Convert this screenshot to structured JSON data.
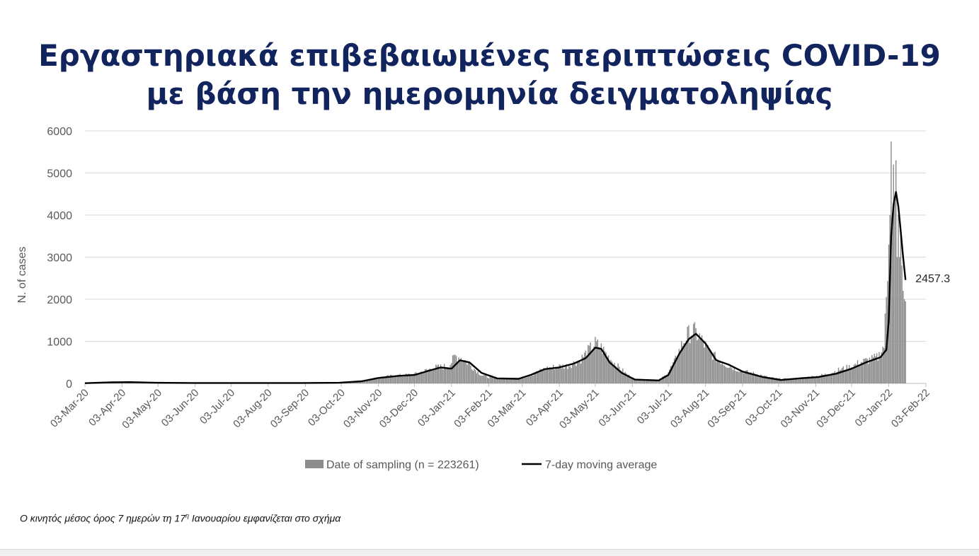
{
  "title": {
    "line1": "Εργαστηριακά επιβεβαιωμένες περιπτώσεις COVID-19",
    "line2": "με βάση την ημερομηνία δειγματοληψίας"
  },
  "footnote": {
    "before": "Ο κινητός μέσος όρος 7 ημερών τη 17",
    "sup": "η",
    "after": " Ιανουαρίου εμφανίζεται στο σχήμα"
  },
  "chart_data": {
    "type": "bar",
    "ylabel": "N. of cases",
    "ylim": [
      0,
      6000
    ],
    "yticks": [
      0,
      1000,
      2000,
      3000,
      4000,
      5000,
      6000
    ],
    "xticks": [
      "03-Mar-20",
      "03-Apr-20",
      "03-May-20",
      "03-Jun-20",
      "03-Jul-20",
      "03-Aug-20",
      "03-Sep-20",
      "03-Oct-20",
      "03-Nov-20",
      "03-Dec-20",
      "03-Jan-21",
      "03-Feb-21",
      "03-Mar-21",
      "03-Apr-21",
      "03-May-21",
      "03-Jun-21",
      "03-Jul-21",
      "03-Aug-21",
      "03-Sep-21",
      "03-Oct-21",
      "03-Nov-21",
      "03-Dec-21",
      "03-Jan-22",
      "03-Feb-22"
    ],
    "x_range": [
      "2020-03-03",
      "2022-02-03"
    ],
    "grid": true,
    "legend_position": "bottom",
    "colors": {
      "bars": "#8c8c8c",
      "line": "#000000",
      "grid": "#d9d9d9",
      "axis_text": "#595959"
    },
    "series": [
      {
        "name": "Date of sampling (n = 223261)",
        "kind": "bar",
        "points": [
          [
            "2020-03-03",
            10
          ],
          [
            "2020-03-20",
            30
          ],
          [
            "2020-04-03",
            40
          ],
          [
            "2020-04-20",
            25
          ],
          [
            "2020-05-10",
            15
          ],
          [
            "2020-06-01",
            10
          ],
          [
            "2020-06-20",
            20
          ],
          [
            "2020-07-10",
            15
          ],
          [
            "2020-08-01",
            20
          ],
          [
            "2020-08-25",
            15
          ],
          [
            "2020-09-20",
            20
          ],
          [
            "2020-10-10",
            30
          ],
          [
            "2020-10-25",
            80
          ],
          [
            "2020-11-03",
            140
          ],
          [
            "2020-11-15",
            180
          ],
          [
            "2020-11-25",
            200
          ],
          [
            "2020-12-03",
            220
          ],
          [
            "2020-12-12",
            300
          ],
          [
            "2020-12-20",
            380
          ],
          [
            "2020-12-28",
            400
          ],
          [
            "2021-01-01",
            420
          ],
          [
            "2021-01-06",
            650
          ],
          [
            "2021-01-12",
            600
          ],
          [
            "2021-01-20",
            400
          ],
          [
            "2021-01-28",
            200
          ],
          [
            "2021-02-03",
            150
          ],
          [
            "2021-02-15",
            120
          ],
          [
            "2021-02-25",
            110
          ],
          [
            "2021-03-03",
            130
          ],
          [
            "2021-03-12",
            220
          ],
          [
            "2021-03-22",
            350
          ],
          [
            "2021-04-01",
            400
          ],
          [
            "2021-04-10",
            420
          ],
          [
            "2021-04-20",
            550
          ],
          [
            "2021-04-28",
            800
          ],
          [
            "2021-05-03",
            950
          ],
          [
            "2021-05-08",
            850
          ],
          [
            "2021-05-15",
            600
          ],
          [
            "2021-05-22",
            400
          ],
          [
            "2021-05-30",
            200
          ],
          [
            "2021-06-05",
            100
          ],
          [
            "2021-06-15",
            80
          ],
          [
            "2021-06-25",
            80
          ],
          [
            "2021-07-01",
            200
          ],
          [
            "2021-07-08",
            500
          ],
          [
            "2021-07-14",
            900
          ],
          [
            "2021-07-19",
            1150
          ],
          [
            "2021-07-24",
            1250
          ],
          [
            "2021-07-29",
            1100
          ],
          [
            "2021-08-05",
            800
          ],
          [
            "2021-08-12",
            600
          ],
          [
            "2021-08-20",
            450
          ],
          [
            "2021-08-28",
            350
          ],
          [
            "2021-09-05",
            280
          ],
          [
            "2021-09-15",
            220
          ],
          [
            "2021-09-25",
            140
          ],
          [
            "2021-10-03",
            110
          ],
          [
            "2021-10-13",
            100
          ],
          [
            "2021-10-25",
            140
          ],
          [
            "2021-11-03",
            170
          ],
          [
            "2021-11-13",
            220
          ],
          [
            "2021-11-23",
            330
          ],
          [
            "2021-12-03",
            400
          ],
          [
            "2021-12-10",
            500
          ],
          [
            "2021-12-18",
            560
          ],
          [
            "2021-12-25",
            620
          ],
          [
            "2021-12-30",
            900
          ],
          [
            "2022-01-01",
            2000
          ],
          [
            "2022-01-03",
            3300
          ],
          [
            "2022-01-04",
            4000
          ],
          [
            "2022-01-05",
            5750
          ],
          [
            "2022-01-06",
            3800
          ],
          [
            "2022-01-07",
            5200
          ],
          [
            "2022-01-08",
            4300
          ],
          [
            "2022-01-09",
            5300
          ],
          [
            "2022-01-10",
            3000
          ],
          [
            "2022-01-11",
            4000
          ],
          [
            "2022-01-12",
            3000
          ],
          [
            "2022-01-13",
            3600
          ],
          [
            "2022-01-14",
            2800
          ],
          [
            "2022-01-15",
            2200
          ],
          [
            "2022-01-16",
            2000
          ],
          [
            "2022-01-17",
            1950
          ]
        ]
      },
      {
        "name": "7-day moving average",
        "kind": "line",
        "points": [
          [
            "2020-03-03",
            5
          ],
          [
            "2020-03-25",
            25
          ],
          [
            "2020-04-10",
            30
          ],
          [
            "2020-05-01",
            15
          ],
          [
            "2020-06-01",
            10
          ],
          [
            "2020-07-01",
            10
          ],
          [
            "2020-08-01",
            10
          ],
          [
            "2020-09-01",
            10
          ],
          [
            "2020-10-01",
            15
          ],
          [
            "2020-10-20",
            50
          ],
          [
            "2020-11-03",
            130
          ],
          [
            "2020-11-20",
            180
          ],
          [
            "2020-12-03",
            200
          ],
          [
            "2020-12-15",
            300
          ],
          [
            "2020-12-25",
            380
          ],
          [
            "2021-01-03",
            350
          ],
          [
            "2021-01-10",
            550
          ],
          [
            "2021-01-18",
            500
          ],
          [
            "2021-01-28",
            250
          ],
          [
            "2021-02-10",
            120
          ],
          [
            "2021-02-28",
            110
          ],
          [
            "2021-03-10",
            200
          ],
          [
            "2021-03-22",
            340
          ],
          [
            "2021-04-03",
            380
          ],
          [
            "2021-04-15",
            470
          ],
          [
            "2021-04-25",
            600
          ],
          [
            "2021-05-03",
            850
          ],
          [
            "2021-05-08",
            820
          ],
          [
            "2021-05-15",
            500
          ],
          [
            "2021-05-25",
            250
          ],
          [
            "2021-06-05",
            90
          ],
          [
            "2021-06-25",
            70
          ],
          [
            "2021-07-03",
            200
          ],
          [
            "2021-07-12",
            700
          ],
          [
            "2021-07-20",
            1050
          ],
          [
            "2021-07-26",
            1180
          ],
          [
            "2021-08-03",
            950
          ],
          [
            "2021-08-12",
            550
          ],
          [
            "2021-08-22",
            450
          ],
          [
            "2021-09-03",
            280
          ],
          [
            "2021-09-20",
            150
          ],
          [
            "2021-10-05",
            80
          ],
          [
            "2021-10-20",
            120
          ],
          [
            "2021-11-05",
            150
          ],
          [
            "2021-11-20",
            230
          ],
          [
            "2021-12-03",
            350
          ],
          [
            "2021-12-15",
            500
          ],
          [
            "2021-12-27",
            620
          ],
          [
            "2022-01-01",
            800
          ],
          [
            "2022-01-03",
            1500
          ],
          [
            "2022-01-05",
            3500
          ],
          [
            "2022-01-07",
            4250
          ],
          [
            "2022-01-09",
            4550
          ],
          [
            "2022-01-11",
            4200
          ],
          [
            "2022-01-13",
            3600
          ],
          [
            "2022-01-15",
            3000
          ],
          [
            "2022-01-17",
            2457.3
          ]
        ]
      }
    ],
    "annotation": {
      "text": "2457.3",
      "x": "2022-01-17",
      "y": 2457.3
    }
  }
}
